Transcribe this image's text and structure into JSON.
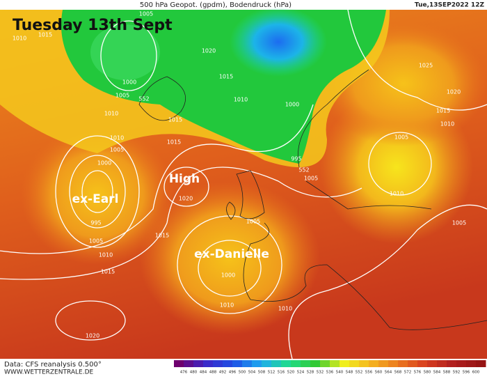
{
  "header": {
    "title": "500 hPa Geopot. (gpdm), Bodendruck (hPa)",
    "date": "Tue,13SEP2022 12Z"
  },
  "overlay_title": "Tuesday 13th Sept",
  "systems": [
    "ex-Earl",
    "High",
    "ex-Danielle"
  ],
  "isobar_labels": [
    1005,
    1015,
    1010,
    1020,
    1000,
    1005,
    552,
    1015,
    1010,
    1000,
    1010,
    1015,
    1010,
    1005,
    1000,
    1015,
    995,
    552,
    1005,
    1020,
    995,
    1005,
    1010,
    1015,
    1015,
    1005,
    1000,
    1010,
    1010,
    1020,
    1025,
    1020,
    1015,
    1010,
    1005,
    1010,
    1005
  ],
  "footer": {
    "source": "Data: CFS reanalysis 0.500°",
    "site": "WWW.WETTERZENTRALE.DE"
  },
  "colorbar_ticks": [
    476,
    480,
    484,
    488,
    492,
    496,
    500,
    504,
    508,
    512,
    516,
    520,
    524,
    528,
    532,
    536,
    540,
    548,
    552,
    556,
    560,
    564,
    568,
    572,
    576,
    580,
    584,
    588,
    592,
    596,
    600
  ]
}
